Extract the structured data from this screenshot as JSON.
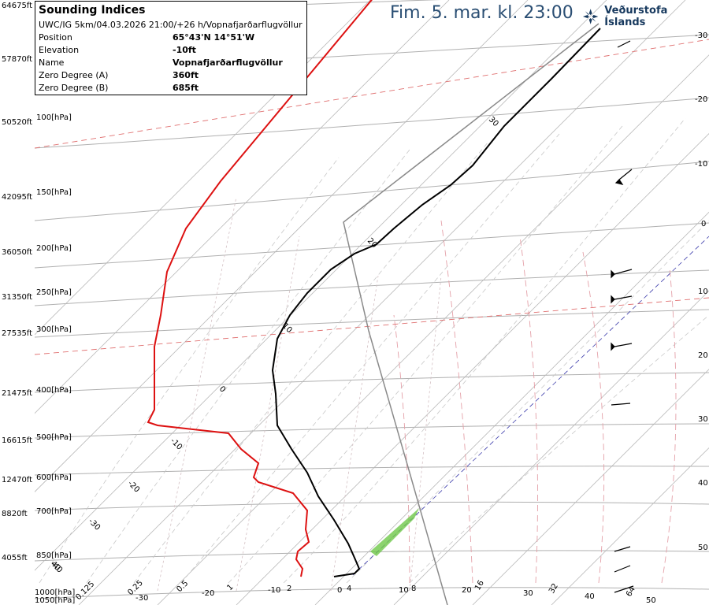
{
  "title": "Fim. 5. mar. kl. 23:00",
  "brand": "Veðurstofa Íslands",
  "info": {
    "heading": "Sounding Indices",
    "subtitle": "UWC/IG 5km/04.03.2026 21:00/+26 h/Vopnafjarðarflugvöllur",
    "rows": [
      {
        "k": "Position",
        "v": "65°43'N 14°51'W"
      },
      {
        "k": "Elevation",
        "v": "-10ft"
      },
      {
        "k": "Name",
        "v": "Vopnafjarðarflugvöllur"
      },
      {
        "k": "Zero Degree (A)",
        "v": "360ft"
      },
      {
        "k": "Zero Degree (B)",
        "v": "685ft"
      }
    ]
  },
  "chart_data": {
    "type": "line",
    "pressure_levels": [
      {
        "p": "100[hPa]",
        "ft": "50520ft"
      },
      {
        "p": "150[hPa]",
        "ft": "42095ft"
      },
      {
        "p": "200[hPa]",
        "ft": "36050ft"
      },
      {
        "p": "250[hPa]",
        "ft": "31350ft"
      },
      {
        "p": "300[hPa]",
        "ft": "27535ft"
      },
      {
        "p": "400[hPa]",
        "ft": "21475ft"
      },
      {
        "p": "500[hPa]",
        "ft": "16615ft"
      },
      {
        "p": "600[hPa]",
        "ft": "12470ft"
      },
      {
        "p": "700[hPa]",
        "ft": "8820ft"
      },
      {
        "p": "850[hPa]",
        "ft": "4055ft"
      },
      {
        "p": "1000[hPa]",
        "ft": ""
      },
      {
        "p": "1050[hPa]",
        "ft": ""
      }
    ],
    "top_ft_labels": [
      "64675ft",
      "57870ft"
    ],
    "bottom_labels": [
      "0.125",
      "-30",
      "0.25",
      "-20",
      "0.5",
      "1",
      "-10",
      "2",
      "0",
      "4",
      "10",
      "8",
      "20",
      "16",
      "30",
      "32",
      "40",
      "64",
      "50"
    ],
    "right_labels": [
      "-30",
      "-20",
      "-10",
      "0",
      "10",
      "20",
      "30",
      "40",
      "50"
    ],
    "isotherm_labels": [
      "40",
      "30",
      "20",
      "10",
      "0",
      "-10",
      "-20",
      "-30",
      "-40"
    ],
    "series": []
  }
}
